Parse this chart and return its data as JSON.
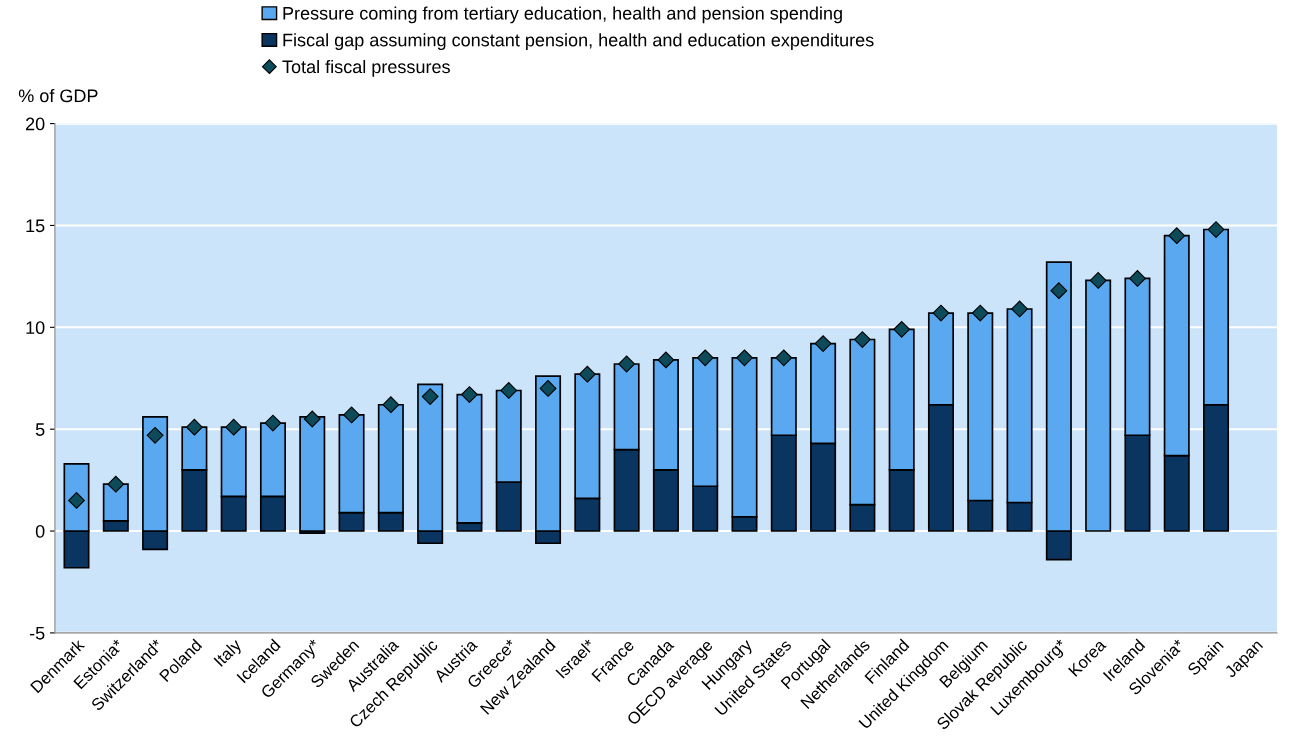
{
  "chart_data": {
    "type": "bar",
    "stacked": true,
    "ylabel": "% of GDP",
    "categories": [
      "Denmark",
      "Estonia*",
      "Switzerland*",
      "Poland",
      "Italy",
      "Iceland",
      "Germany*",
      "Sweden",
      "Australia",
      "Czech Republic",
      "Austria",
      "Greece*",
      "New Zealand",
      "Israel*",
      "France",
      "Canada",
      "OECD average",
      "Hungary",
      "United States",
      "Portugal",
      "Netherlands",
      "Finland",
      "United Kingdom",
      "Belgium",
      "Slovak Republic",
      "Luxembourg*",
      "Korea",
      "Ireland",
      "Slovenia*",
      "Spain",
      "Japan"
    ],
    "series": [
      {
        "name": "Fiscal gap assuming constant pension, health and education expenditures",
        "color": "#0b3561",
        "values": [
          -1.8,
          0.5,
          -0.9,
          3.0,
          1.7,
          1.7,
          -0.1,
          0.9,
          0.9,
          -0.6,
          0.4,
          2.4,
          -0.6,
          1.6,
          4.0,
          3.0,
          2.2,
          0.7,
          4.7,
          4.3,
          1.3,
          3.0,
          6.2,
          1.5,
          1.4,
          -1.4,
          0.0,
          4.7,
          3.7,
          6.2,
          null
        ]
      },
      {
        "name": "Pressure coming from tertiary education, health and pension spending",
        "color": "#5aa9f0",
        "values": [
          3.3,
          1.8,
          5.6,
          2.1,
          3.4,
          3.6,
          5.6,
          4.8,
          5.3,
          7.2,
          6.3,
          4.5,
          7.6,
          6.1,
          4.2,
          5.4,
          6.3,
          7.8,
          3.8,
          4.9,
          8.1,
          6.9,
          4.5,
          9.2,
          9.5,
          13.2,
          12.3,
          7.7,
          10.8,
          8.6,
          null
        ]
      },
      {
        "name": "Total fiscal pressures",
        "type": "scatter",
        "marker": "diamond",
        "color": "#0d4a5a",
        "values": [
          1.5,
          2.3,
          4.7,
          5.1,
          5.1,
          5.3,
          5.5,
          5.7,
          6.2,
          6.6,
          6.7,
          6.9,
          7.0,
          7.7,
          8.2,
          8.4,
          8.5,
          8.5,
          8.5,
          9.2,
          9.4,
          9.9,
          10.7,
          10.7,
          10.9,
          11.8,
          12.3,
          12.4,
          14.5,
          14.8,
          null
        ]
      }
    ],
    "ylim": [
      -5,
      20
    ],
    "yticks": [
      -5,
      0,
      5,
      10,
      15,
      20
    ],
    "grid": "y",
    "legend": "top"
  }
}
